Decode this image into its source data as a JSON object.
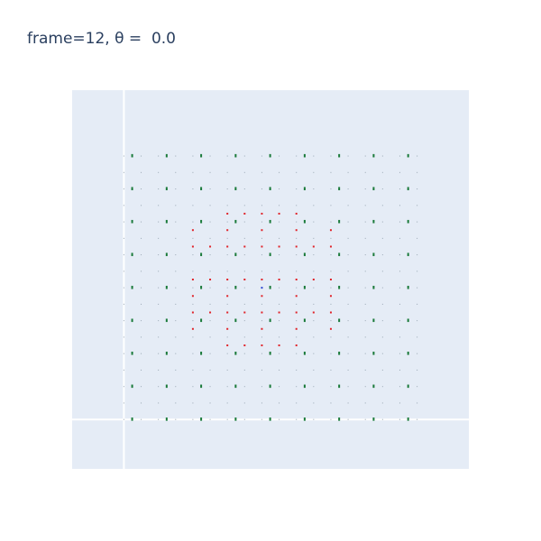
{
  "chart_data": {
    "type": "scatter",
    "title": "frame=12, θ =  0.0",
    "xlabel": "",
    "ylabel": "",
    "xlim": [
      -1.5,
      10.0
    ],
    "ylim": [
      -1.5,
      10.0
    ],
    "grid": true,
    "legend": "none",
    "colors": {
      "plot_bg": "#e5ecf6",
      "zero_line": "#ffffff",
      "green": "#1a7a3a",
      "grey": "#9aa8b4",
      "red": "#e0242a",
      "blue": "#2b46d1"
    },
    "series": [
      {
        "color": "green",
        "marker": "dash",
        "points": [
          [
            0.24,
            8.01
          ],
          [
            1.24,
            8.01
          ],
          [
            2.24,
            8.01
          ],
          [
            3.24,
            8.01
          ],
          [
            4.24,
            8.01
          ],
          [
            5.24,
            8.01
          ],
          [
            6.24,
            8.01
          ],
          [
            7.24,
            8.01
          ],
          [
            8.24,
            8.01
          ],
          [
            0.24,
            7.01
          ],
          [
            1.24,
            7.01
          ],
          [
            2.24,
            7.01
          ],
          [
            3.24,
            7.01
          ],
          [
            4.24,
            7.01
          ],
          [
            5.24,
            7.01
          ],
          [
            6.24,
            7.01
          ],
          [
            7.24,
            7.01
          ],
          [
            8.24,
            7.01
          ],
          [
            0.24,
            6.01
          ],
          [
            1.24,
            6.01
          ],
          [
            2.24,
            6.01
          ],
          [
            3.24,
            6.01
          ],
          [
            4.24,
            6.01
          ],
          [
            5.24,
            6.01
          ],
          [
            6.24,
            6.01
          ],
          [
            7.24,
            6.01
          ],
          [
            8.24,
            6.01
          ],
          [
            0.24,
            5.01
          ],
          [
            1.24,
            5.01
          ],
          [
            2.24,
            5.01
          ],
          [
            3.24,
            5.01
          ],
          [
            4.24,
            5.01
          ],
          [
            5.24,
            5.01
          ],
          [
            6.24,
            5.01
          ],
          [
            7.24,
            5.01
          ],
          [
            8.24,
            5.01
          ],
          [
            0.24,
            4.01
          ],
          [
            1.24,
            4.01
          ],
          [
            2.24,
            4.01
          ],
          [
            3.24,
            4.01
          ],
          [
            4.24,
            4.01
          ],
          [
            5.24,
            4.01
          ],
          [
            6.24,
            4.01
          ],
          [
            7.24,
            4.01
          ],
          [
            8.24,
            4.01
          ],
          [
            0.24,
            3.01
          ],
          [
            1.24,
            3.01
          ],
          [
            2.24,
            3.01
          ],
          [
            3.24,
            3.01
          ],
          [
            4.24,
            3.01
          ],
          [
            5.24,
            3.01
          ],
          [
            6.24,
            3.01
          ],
          [
            7.24,
            3.01
          ],
          [
            8.24,
            3.01
          ],
          [
            0.24,
            2.01
          ],
          [
            1.24,
            2.01
          ],
          [
            2.24,
            2.01
          ],
          [
            3.24,
            2.01
          ],
          [
            4.24,
            2.01
          ],
          [
            5.24,
            2.01
          ],
          [
            6.24,
            2.01
          ],
          [
            7.24,
            2.01
          ],
          [
            8.24,
            2.01
          ],
          [
            0.24,
            1.01
          ],
          [
            1.24,
            1.01
          ],
          [
            2.24,
            1.01
          ],
          [
            3.24,
            1.01
          ],
          [
            4.24,
            1.01
          ],
          [
            5.24,
            1.01
          ],
          [
            6.24,
            1.01
          ],
          [
            7.24,
            1.01
          ],
          [
            8.24,
            1.01
          ],
          [
            0.24,
            0.01
          ],
          [
            1.24,
            0.01
          ],
          [
            2.24,
            0.01
          ],
          [
            3.24,
            0.01
          ],
          [
            4.24,
            0.01
          ],
          [
            5.24,
            0.01
          ],
          [
            6.24,
            0.01
          ],
          [
            7.24,
            0.01
          ],
          [
            8.24,
            0.01
          ]
        ]
      },
      {
        "color": "red",
        "marker": "dot",
        "points": [
          [
            3.0,
            6.25
          ],
          [
            3.5,
            6.25
          ],
          [
            4.0,
            6.25
          ],
          [
            4.5,
            6.25
          ],
          [
            5.0,
            6.25
          ],
          [
            2.0,
            5.25
          ],
          [
            2.5,
            5.25
          ],
          [
            3.0,
            5.25
          ],
          [
            3.5,
            5.25
          ],
          [
            4.0,
            5.25
          ],
          [
            4.5,
            5.25
          ],
          [
            5.0,
            5.25
          ],
          [
            5.5,
            5.25
          ],
          [
            6.0,
            5.25
          ],
          [
            2.0,
            4.25
          ],
          [
            2.5,
            4.25
          ],
          [
            3.0,
            4.25
          ],
          [
            3.5,
            4.25
          ],
          [
            4.0,
            4.25
          ],
          [
            4.5,
            4.25
          ],
          [
            5.0,
            4.25
          ],
          [
            5.5,
            4.25
          ],
          [
            6.0,
            4.25
          ],
          [
            2.0,
            3.25
          ],
          [
            2.5,
            3.25
          ],
          [
            3.0,
            3.25
          ],
          [
            3.5,
            3.25
          ],
          [
            4.0,
            3.25
          ],
          [
            4.5,
            3.25
          ],
          [
            5.0,
            3.25
          ],
          [
            5.5,
            3.25
          ],
          [
            6.0,
            3.25
          ],
          [
            3.0,
            2.25
          ],
          [
            3.5,
            2.25
          ],
          [
            4.0,
            2.25
          ],
          [
            4.5,
            2.25
          ],
          [
            5.0,
            2.25
          ],
          [
            2.0,
            5.75
          ],
          [
            3.0,
            5.75
          ],
          [
            4.0,
            5.75
          ],
          [
            5.0,
            5.75
          ],
          [
            6.0,
            5.75
          ],
          [
            2.0,
            3.75
          ],
          [
            3.0,
            3.75
          ],
          [
            4.0,
            3.75
          ],
          [
            5.0,
            3.75
          ],
          [
            6.0,
            3.75
          ],
          [
            2.0,
            2.75
          ],
          [
            3.0,
            2.75
          ],
          [
            4.0,
            2.75
          ],
          [
            5.0,
            2.75
          ],
          [
            6.0,
            2.75
          ]
        ]
      },
      {
        "color": "blue",
        "marker": "dot",
        "points": [
          [
            4.0,
            4.0
          ]
        ]
      }
    ]
  }
}
